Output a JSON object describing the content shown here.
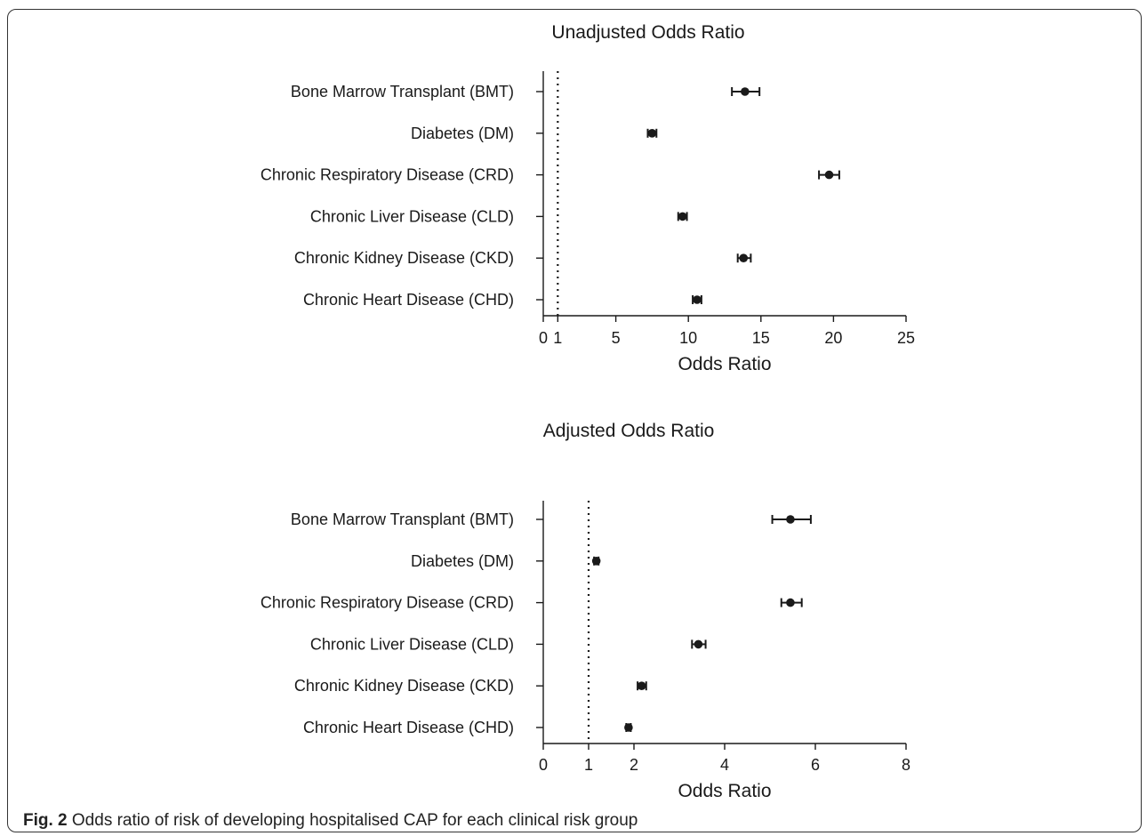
{
  "chart_data": [
    {
      "type": "forest",
      "title": "Unadjusted Odds  Ratio",
      "xlabel": "Odds Ratio",
      "xlim": [
        0,
        25
      ],
      "xticks": [
        "0",
        "1",
        "5",
        "10",
        "15",
        "20",
        "25"
      ],
      "reference_line": 1,
      "categories": [
        "Bone Marrow Transplant (BMT)",
        "Diabetes (DM)",
        "Chronic Respiratory Disease (CRD)",
        "Chronic Liver Disease (CLD)",
        "Chronic Kidney Disease (CKD)",
        "Chronic Heart Disease (CHD)"
      ],
      "values": [
        13.9,
        7.5,
        19.7,
        9.6,
        13.8,
        10.6
      ],
      "ci_low": [
        13.0,
        7.2,
        19.0,
        9.3,
        13.4,
        10.3
      ],
      "ci_high": [
        14.9,
        7.8,
        20.4,
        9.9,
        14.3,
        10.9
      ]
    },
    {
      "type": "forest",
      "title": "Adjusted Odds  Ratio",
      "xlabel": "Odds Ratio",
      "xlim": [
        0,
        8
      ],
      "xticks": [
        "0",
        "1",
        "2",
        "4",
        "6",
        "8"
      ],
      "reference_line": 1,
      "categories": [
        "Bone Marrow Transplant (BMT)",
        "Diabetes (DM)",
        "Chronic Respiratory Disease (CRD)",
        "Chronic Liver Disease (CLD)",
        "Chronic Kidney Disease (CKD)",
        "Chronic Heart Disease (CHD)"
      ],
      "values": [
        5.45,
        1.17,
        5.45,
        3.42,
        2.17,
        1.88
      ],
      "ci_low": [
        5.05,
        1.12,
        5.25,
        3.28,
        2.08,
        1.83
      ],
      "ci_high": [
        5.9,
        1.22,
        5.7,
        3.58,
        2.27,
        1.93
      ]
    }
  ],
  "caption": {
    "label": "Fig. 2",
    "text": " Odds ratio of risk of developing hospitalised CAP for each clinical risk group"
  }
}
